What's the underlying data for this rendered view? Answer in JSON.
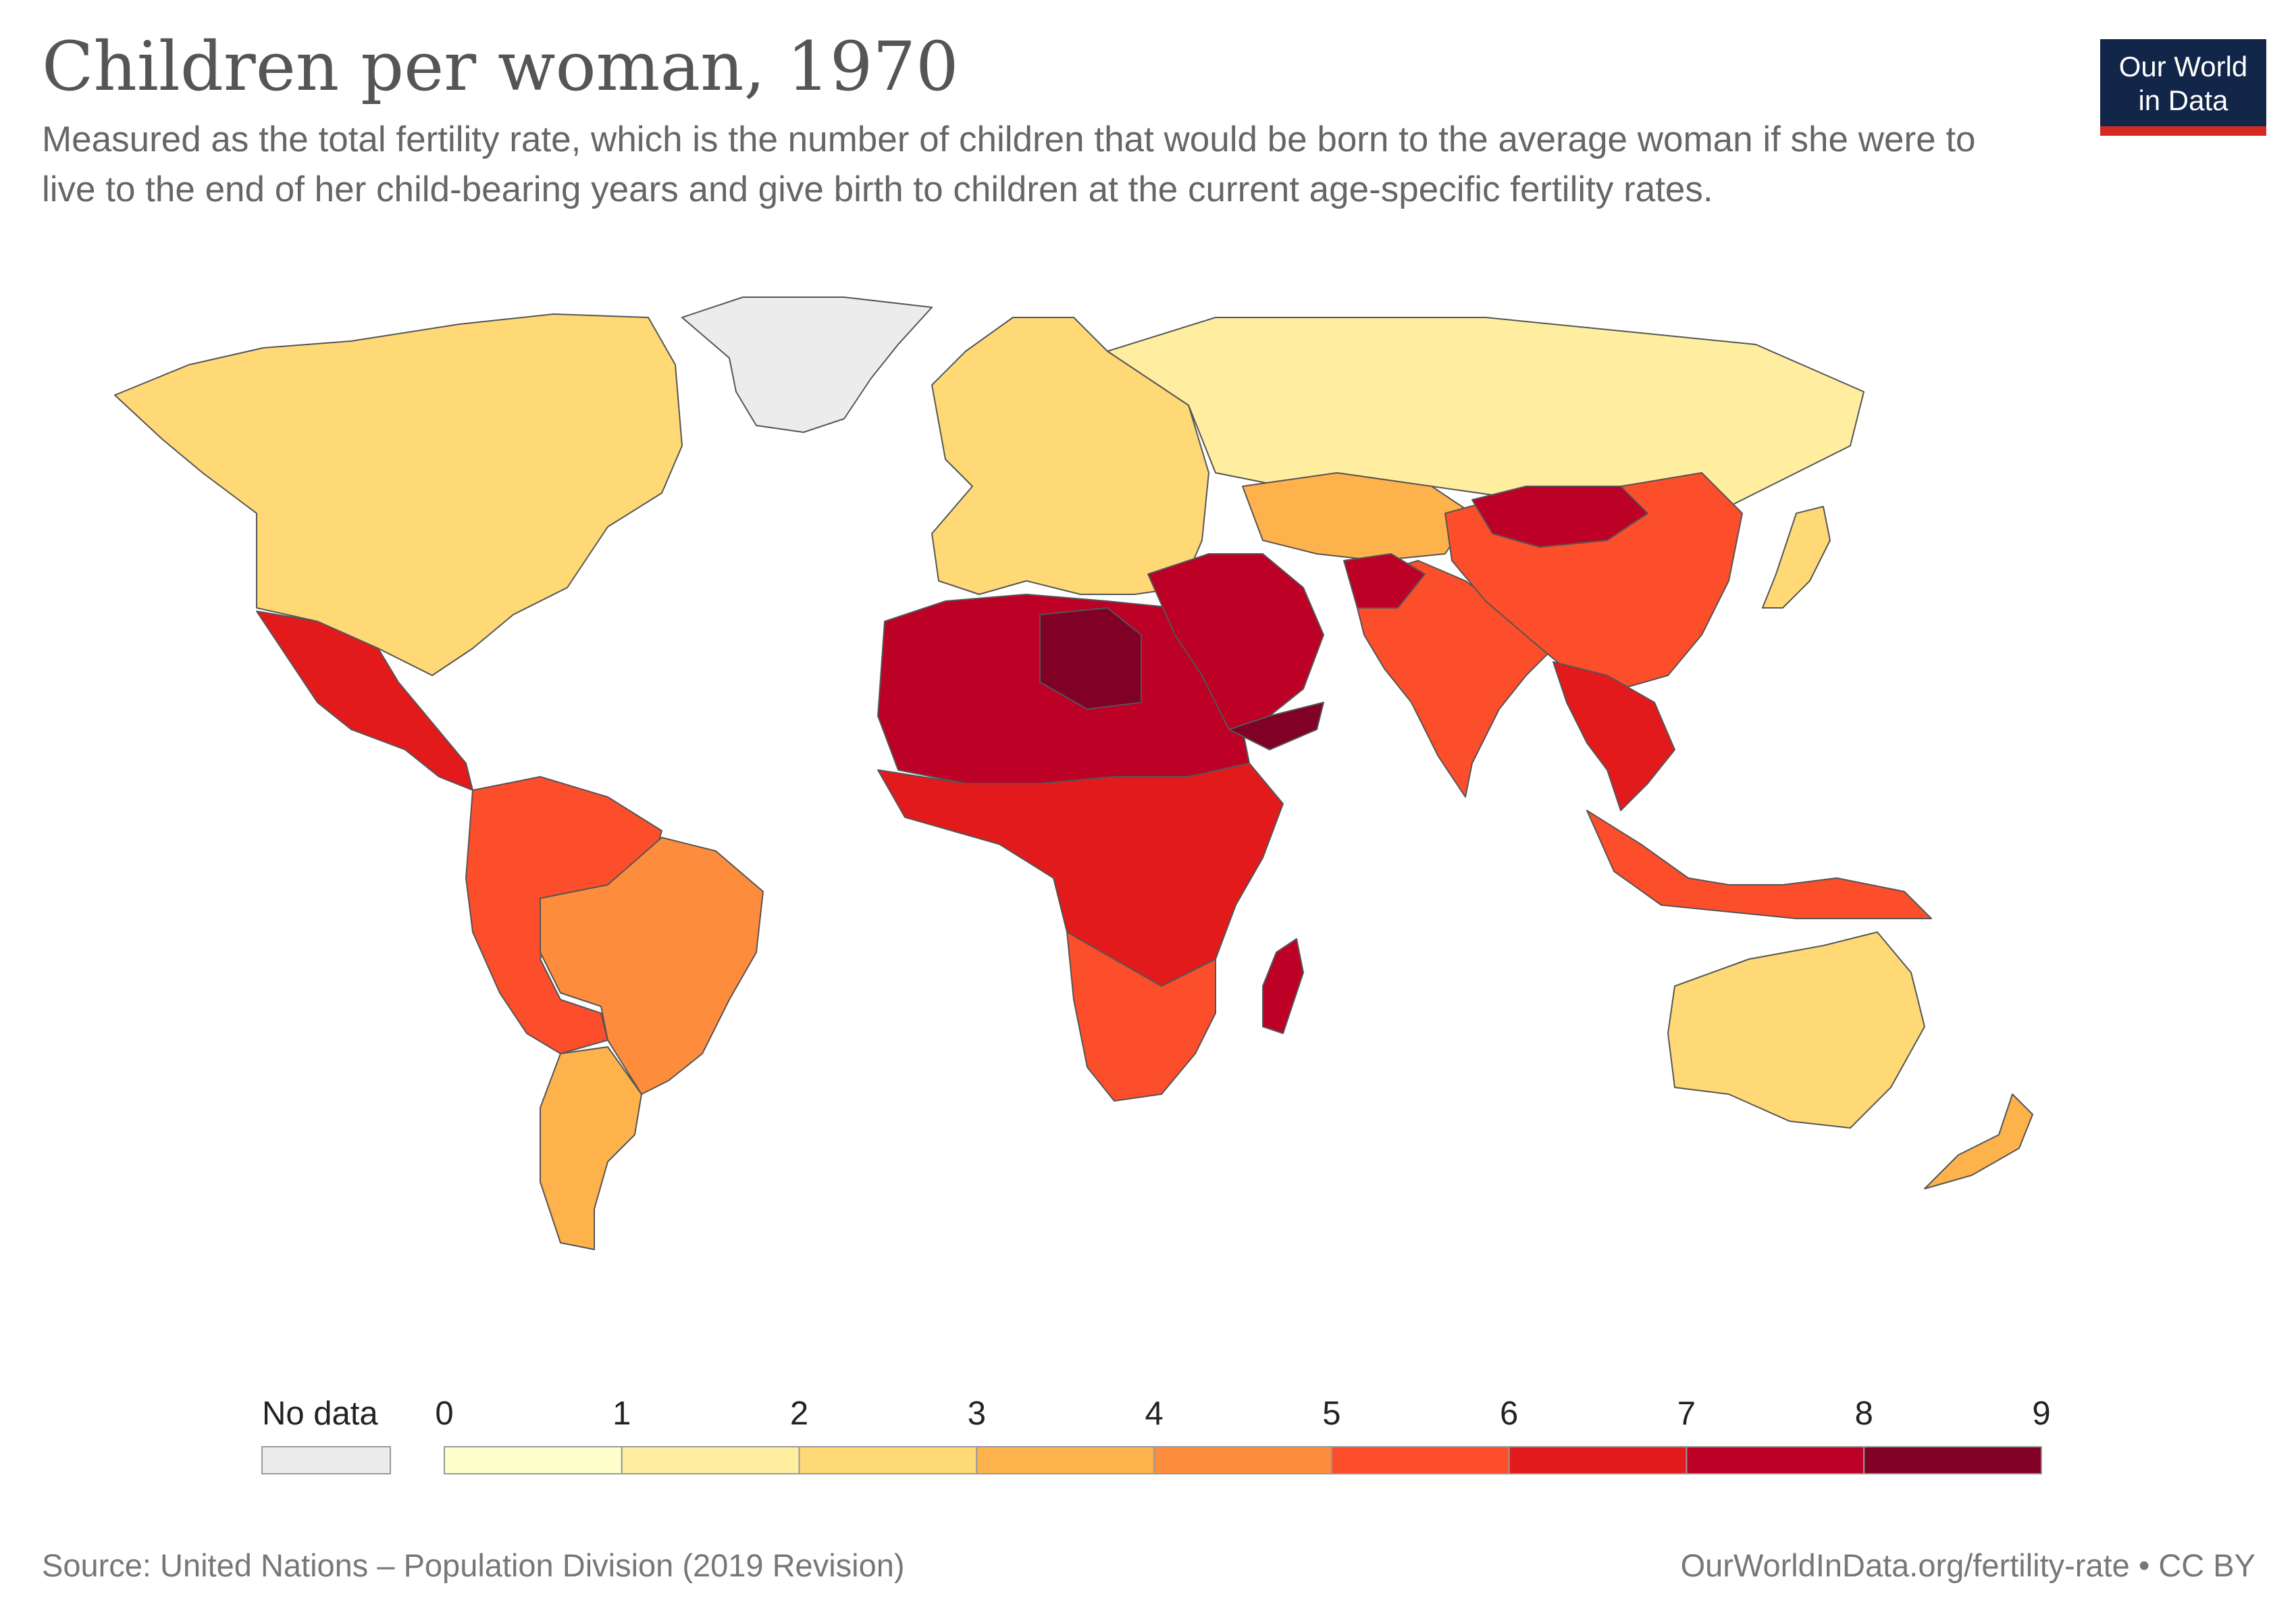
{
  "header": {
    "title": "Children per woman, 1970",
    "subtitle": "Measured as the total fertility rate, which is the number of children that would be born to the average woman if she were to live to the end of her child-bearing years and give birth to children at the current age-specific fertility rates."
  },
  "logo": {
    "line1": "Our World",
    "line2": "in Data"
  },
  "legend": {
    "no_data_label": "No data",
    "no_data_color": "#ececec",
    "ticks": [
      "0",
      "1",
      "2",
      "3",
      "4",
      "5",
      "6",
      "7",
      "8",
      "9"
    ],
    "bins": [
      {
        "from": 0,
        "to": 1,
        "color": "#ffffcc"
      },
      {
        "from": 1,
        "to": 2,
        "color": "#ffeda0"
      },
      {
        "from": 2,
        "to": 3,
        "color": "#fed976"
      },
      {
        "from": 3,
        "to": 4,
        "color": "#feb24c"
      },
      {
        "from": 4,
        "to": 5,
        "color": "#fd8d3c"
      },
      {
        "from": 5,
        "to": 6,
        "color": "#fc4e2a"
      },
      {
        "from": 6,
        "to": 7,
        "color": "#e31a1c"
      },
      {
        "from": 7,
        "to": 8,
        "color": "#bd0026"
      },
      {
        "from": 8,
        "to": 9,
        "color": "#800026"
      }
    ]
  },
  "footer": {
    "source": "Source: United Nations – Population Division (2019 Revision)",
    "url": "OurWorldInData.org/fertility-rate • CC BY"
  },
  "map_regions": [
    {
      "name": "Greenland",
      "color": "#ececec"
    },
    {
      "name": "North America",
      "color": "#fed976"
    },
    {
      "name": "Mexico and Central America",
      "color": "#e31a1c"
    },
    {
      "name": "South America north",
      "color": "#fc4e2a"
    },
    {
      "name": "Brazil",
      "color": "#fd8d3c"
    },
    {
      "name": "Southern Cone",
      "color": "#feb24c"
    },
    {
      "name": "Europe",
      "color": "#fed976"
    },
    {
      "name": "Russia",
      "color": "#ffeda0"
    },
    {
      "name": "Kazakhstan",
      "color": "#feb24c"
    },
    {
      "name": "North Africa",
      "color": "#bd0026"
    },
    {
      "name": "Libya",
      "color": "#800026"
    },
    {
      "name": "Sub-Saharan Africa",
      "color": "#e31a1c"
    },
    {
      "name": "Southern Africa",
      "color": "#fc4e2a"
    },
    {
      "name": "Madagascar",
      "color": "#bd0026"
    },
    {
      "name": "Middle East",
      "color": "#bd0026"
    },
    {
      "name": "Yemen",
      "color": "#800026"
    },
    {
      "name": "South Asia",
      "color": "#fc4e2a"
    },
    {
      "name": "Afghanistan",
      "color": "#bd0026"
    },
    {
      "name": "China",
      "color": "#fc4e2a"
    },
    {
      "name": "Mongolia",
      "color": "#bd0026"
    },
    {
      "name": "Japan",
      "color": "#fed976"
    },
    {
      "name": "Southeast Asia",
      "color": "#e31a1c"
    },
    {
      "name": "Indonesia",
      "color": "#fc4e2a"
    },
    {
      "name": "Australia",
      "color": "#fed976"
    },
    {
      "name": "New Zealand",
      "color": "#feb24c"
    }
  ]
}
